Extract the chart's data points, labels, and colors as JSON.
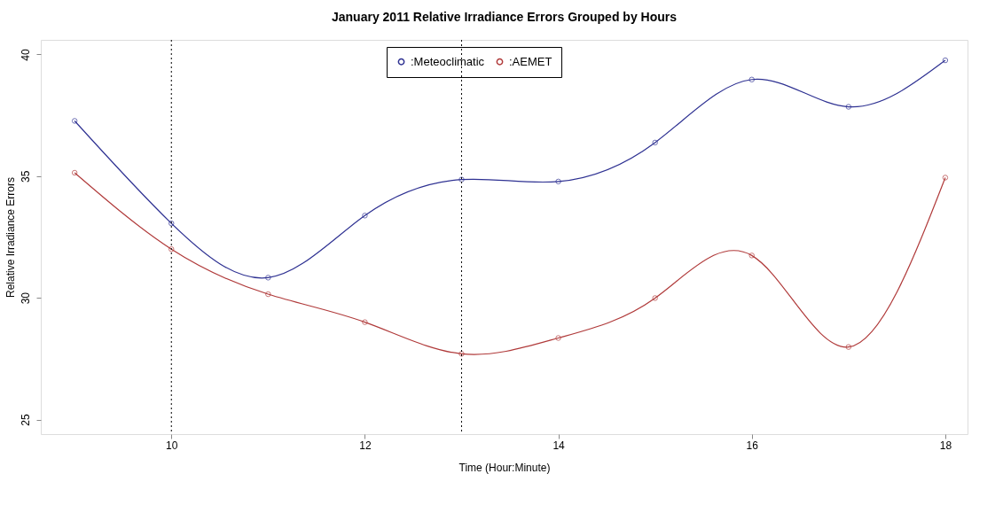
{
  "chart_data": {
    "type": "line",
    "title": "January 2011 Relative Irradiance Errors Grouped by Hours",
    "xlabel": "Time (Hour:Minute)",
    "ylabel": "Relative Irradiance Errors",
    "x": [
      9,
      10,
      11,
      12,
      13,
      14,
      15,
      16,
      17,
      18
    ],
    "series": [
      {
        "name": ":Meteoclimatic",
        "color": "#2e3192",
        "values": [
          37.27,
          33.06,
          30.83,
          33.38,
          34.86,
          34.78,
          36.38,
          38.97,
          37.85,
          39.76
        ]
      },
      {
        "name": ":AEMET",
        "color": "#b03a3a",
        "values": [
          35.14,
          32.0,
          30.15,
          29.0,
          27.7,
          28.35,
          29.99,
          31.74,
          27.98,
          34.94
        ]
      }
    ],
    "xlim": [
      8.65,
      18.23
    ],
    "xticks": [
      10,
      12,
      14,
      16,
      18
    ],
    "ylim": [
      24.4,
      40.6
    ],
    "yticks": [
      25,
      30,
      35,
      40
    ],
    "ref_lines": [
      {
        "axis": "x",
        "value": 10,
        "color": "#000000",
        "line_style": "dotted"
      },
      {
        "axis": "x",
        "value": 13,
        "color": "#000000",
        "line_style": "dotted"
      }
    ],
    "grid": false,
    "legend": "top",
    "marker": "circle",
    "line_style": "solid"
  }
}
